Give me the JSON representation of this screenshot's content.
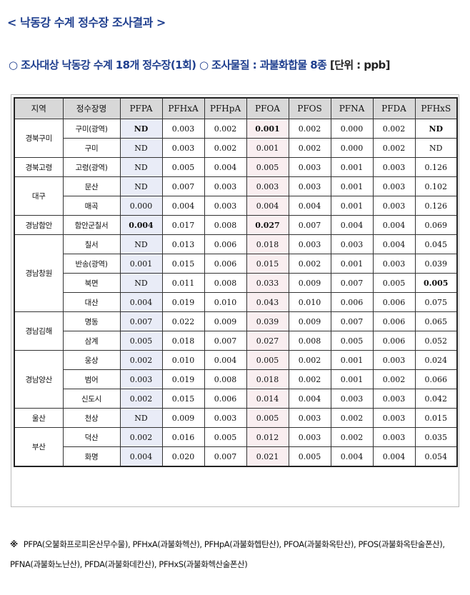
{
  "title": "< 낙동강 수계 정수장 조사결과 >",
  "subtitle": {
    "text": "○ 조사대상 낙동강 수계 18개 정수장(1회) ○ 조사물질 : 과불화합물 8종",
    "unit": "[단위 : ppb]"
  },
  "table": {
    "headers": [
      "지역",
      "정수장명",
      "PFPA",
      "PFHxA",
      "PFHpA",
      "PFOA",
      "PFOS",
      "PFNA",
      "PFDA",
      "PFHxS"
    ],
    "groups": [
      {
        "region": "경북구미",
        "rows": [
          {
            "plant": "구미(광역)",
            "values": [
              "ND",
              "0.003",
              "0.002",
              "0.001",
              "0.002",
              "0.000",
              "0.002",
              "ND"
            ],
            "bold": [
              0,
              3,
              7
            ]
          },
          {
            "plant": "구미",
            "values": [
              "ND",
              "0.003",
              "0.002",
              "0.001",
              "0.002",
              "0.000",
              "0.002",
              "ND"
            ],
            "bold": []
          }
        ]
      },
      {
        "region": "경북고령",
        "rows": [
          {
            "plant": "고령(광역)",
            "values": [
              "ND",
              "0.005",
              "0.004",
              "0.005",
              "0.003",
              "0.001",
              "0.003",
              "0.126"
            ],
            "bold": []
          }
        ]
      },
      {
        "region": "대구",
        "rows": [
          {
            "plant": "문산",
            "values": [
              "ND",
              "0.007",
              "0.003",
              "0.003",
              "0.003",
              "0.001",
              "0.003",
              "0.102"
            ],
            "bold": []
          },
          {
            "plant": "매곡",
            "values": [
              "0.000",
              "0.004",
              "0.003",
              "0.004",
              "0.004",
              "0.001",
              "0.003",
              "0.126"
            ],
            "bold": []
          }
        ]
      },
      {
        "region": "경남함안",
        "rows": [
          {
            "plant": "함안군칠서",
            "values": [
              "0.004",
              "0.017",
              "0.008",
              "0.027",
              "0.007",
              "0.004",
              "0.004",
              "0.069"
            ],
            "bold": [
              0,
              3
            ]
          }
        ]
      },
      {
        "region": "경남창원",
        "rows": [
          {
            "plant": "칠서",
            "values": [
              "ND",
              "0.013",
              "0.006",
              "0.018",
              "0.003",
              "0.003",
              "0.004",
              "0.045"
            ],
            "bold": []
          },
          {
            "plant": "반송(광역)",
            "values": [
              "0.001",
              "0.015",
              "0.006",
              "0.015",
              "0.002",
              "0.001",
              "0.003",
              "0.039"
            ],
            "bold": []
          },
          {
            "plant": "북면",
            "values": [
              "ND",
              "0.011",
              "0.008",
              "0.033",
              "0.009",
              "0.007",
              "0.005",
              "0.005"
            ],
            "bold": [
              7
            ]
          },
          {
            "plant": "대산",
            "values": [
              "0.004",
              "0.019",
              "0.010",
              "0.043",
              "0.010",
              "0.006",
              "0.006",
              "0.075"
            ],
            "bold": []
          }
        ]
      },
      {
        "region": "경남김해",
        "rows": [
          {
            "plant": "명동",
            "values": [
              "0.007",
              "0.022",
              "0.009",
              "0.039",
              "0.009",
              "0.007",
              "0.006",
              "0.065"
            ],
            "bold": []
          },
          {
            "plant": "삼계",
            "values": [
              "0.005",
              "0.018",
              "0.007",
              "0.027",
              "0.008",
              "0.005",
              "0.006",
              "0.052"
            ],
            "bold": []
          }
        ]
      },
      {
        "region": "경남양산",
        "rows": [
          {
            "plant": "웅상",
            "values": [
              "0.002",
              "0.010",
              "0.004",
              "0.005",
              "0.002",
              "0.001",
              "0.003",
              "0.024"
            ],
            "bold": []
          },
          {
            "plant": "범어",
            "values": [
              "0.003",
              "0.019",
              "0.008",
              "0.018",
              "0.002",
              "0.001",
              "0.002",
              "0.066"
            ],
            "bold": []
          },
          {
            "plant": "신도시",
            "values": [
              "0.002",
              "0.015",
              "0.006",
              "0.014",
              "0.004",
              "0.003",
              "0.003",
              "0.042"
            ],
            "bold": []
          }
        ]
      },
      {
        "region": "울산",
        "rows": [
          {
            "plant": "천상",
            "values": [
              "ND",
              "0.009",
              "0.003",
              "0.005",
              "0.003",
              "0.002",
              "0.003",
              "0.015"
            ],
            "bold": []
          }
        ]
      },
      {
        "region": "부산",
        "rows": [
          {
            "plant": "덕산",
            "values": [
              "0.002",
              "0.016",
              "0.005",
              "0.012",
              "0.003",
              "0.002",
              "0.003",
              "0.035"
            ],
            "bold": []
          },
          {
            "plant": "화명",
            "values": [
              "0.004",
              "0.020",
              "0.007",
              "0.021",
              "0.005",
              "0.004",
              "0.004",
              "0.054"
            ],
            "bold": []
          }
        ]
      }
    ]
  },
  "footnote": {
    "mark": "※",
    "text": "PFPA(오불화프로피온산무수물), PFHxA(과불화헥산), PFHpA(과불화헵탄산), PFOA(과불화옥탄산), PFOS(과불화옥탄술폰산), PFNA(과불화노난산), PFDA(과불화데칸산), PFHxS(과불화헥산술폰산)"
  }
}
